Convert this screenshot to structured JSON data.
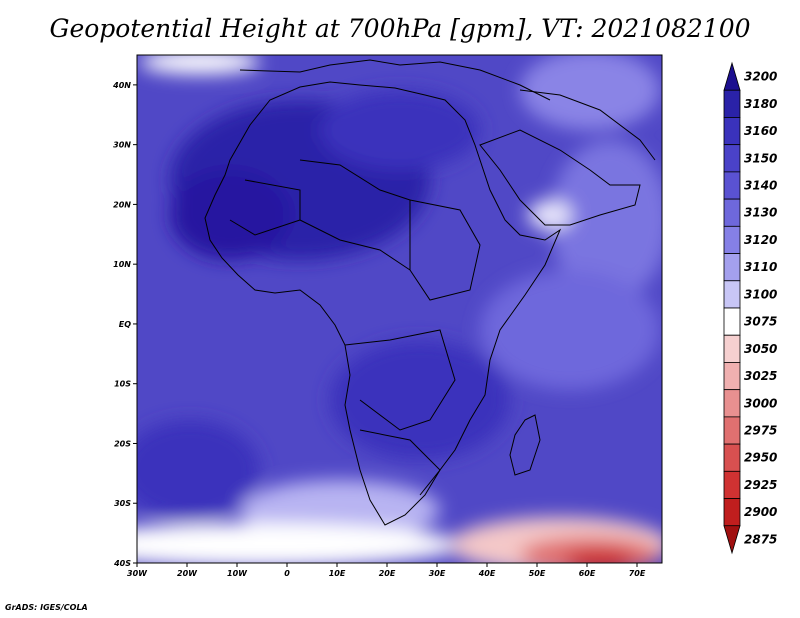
{
  "title": "Geopotential Height at 700hPa [gpm], VT: 2021082100",
  "credit": "GrADS: IGES/COLA",
  "map": {
    "x_ticks": [
      "30W",
      "20W",
      "10W",
      "0",
      "10E",
      "20E",
      "30E",
      "40E",
      "50E",
      "60E",
      "70E"
    ],
    "y_ticks": [
      "40N",
      "30N",
      "20N",
      "10N",
      "EQ",
      "10S",
      "20S",
      "30S",
      "40S"
    ]
  },
  "colorbar": {
    "levels": [
      "3200",
      "3180",
      "3160",
      "3150",
      "3140",
      "3130",
      "3120",
      "3110",
      "3100",
      "3075",
      "3050",
      "3025",
      "3000",
      "2975",
      "2950",
      "2925",
      "2900",
      "2875"
    ],
    "colors": [
      "#1c0f8f",
      "#2a22a8",
      "#3a32bc",
      "#4a42c8",
      "#5a52d2",
      "#6e68dc",
      "#8580e6",
      "#a4a0ee",
      "#c8c6f6",
      "#ffffff",
      "#f6d0d0",
      "#f0b0b0",
      "#e89090",
      "#e07070",
      "#d85050",
      "#d03232",
      "#c01e1e",
      "#a01010"
    ]
  },
  "chart_data": {
    "type": "heatmap",
    "title": "Geopotential Height at 700hPa [gpm], VT: 2021082100",
    "x_range": [
      -30,
      75
    ],
    "y_range": [
      -40,
      45
    ],
    "color_levels": [
      2875,
      2900,
      2925,
      2950,
      2975,
      3000,
      3025,
      3050,
      3075,
      3100,
      3110,
      3120,
      3130,
      3140,
      3150,
      3160,
      3180,
      3200
    ]
  }
}
